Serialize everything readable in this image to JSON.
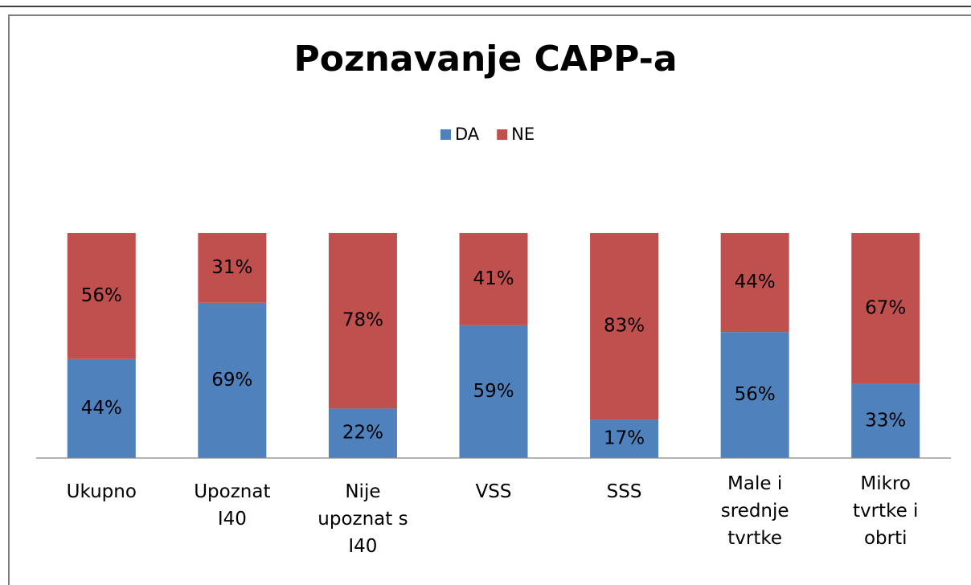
{
  "chart_data": {
    "type": "stacked_bar",
    "title": "Poznavanje CAPP-a",
    "categories": [
      "Ukupno",
      "Upoznat I40",
      "Nije upoznat s I40",
      "VSS",
      "SSS",
      "Male i srednje tvrtke",
      "Mikro tvrtke i obrti"
    ],
    "series": [
      {
        "name": "DA",
        "color": "#4f81bd",
        "values": [
          44,
          69,
          22,
          59,
          17,
          56,
          33
        ],
        "value_labels": [
          "44%",
          "69%",
          "22%",
          "59%",
          "17%",
          "56%",
          "33%"
        ]
      },
      {
        "name": "NE",
        "color": "#c0504d",
        "values": [
          56,
          31,
          78,
          41,
          83,
          44,
          67
        ],
        "value_labels": [
          "56%",
          "31%",
          "78%",
          "41%",
          "83%",
          "44%",
          "67%"
        ]
      }
    ],
    "ylim": [
      0,
      100
    ],
    "legend": "top"
  }
}
